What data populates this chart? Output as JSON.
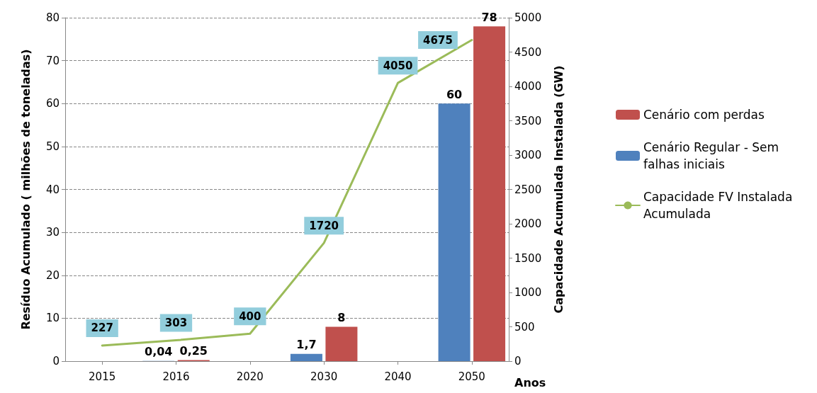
{
  "chart_data": {
    "type": "bar",
    "xlabel": "Anos",
    "ylabel": "Resíduo Acumulado ( milhões de toneladas)",
    "y2label": "Capacidade Acumulada Instalada (GW)",
    "categories": [
      "2015",
      "2016",
      "2020",
      "2030",
      "2040",
      "2050"
    ],
    "series": [
      {
        "name": "Cenário Regular - Sem falhas iniciais",
        "color": "#4f81bd",
        "values": [
          null,
          0.04,
          null,
          1.7,
          null,
          60
        ],
        "value_labels": [
          null,
          "0,04",
          null,
          "1,7",
          null,
          "60"
        ]
      },
      {
        "name": "Cenário com perdas",
        "color": "#c0504d",
        "values": [
          null,
          0.25,
          null,
          8,
          null,
          78
        ],
        "value_labels": [
          null,
          "0,25",
          null,
          "8",
          null,
          "78"
        ]
      },
      {
        "name": "Capacidade FV Instalada Acumulada",
        "type": "line",
        "axis": "y2",
        "color": "#9bbb59",
        "values": [
          227,
          303,
          400,
          1720,
          4050,
          4675
        ],
        "value_labels": [
          "227",
          "303",
          "400",
          "1720",
          "4050",
          "4675"
        ]
      }
    ],
    "ylim": [
      0,
      80
    ],
    "yticks": [
      0,
      10,
      20,
      30,
      40,
      50,
      60,
      70,
      80
    ],
    "y2lim": [
      0,
      5000
    ],
    "y2ticks": [
      0,
      500,
      1000,
      1500,
      2000,
      2500,
      3000,
      3500,
      4000,
      4500,
      5000
    ],
    "grid": "y",
    "legend": "right",
    "marker": "none",
    "line_style": "solid"
  }
}
